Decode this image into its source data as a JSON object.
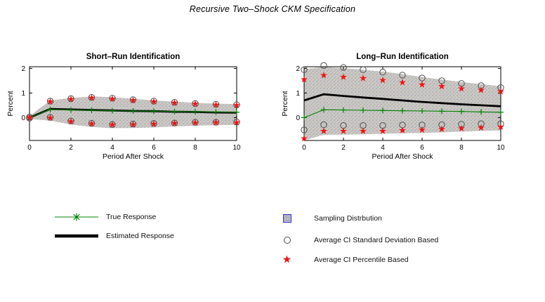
{
  "figure_title": "Recursive Two–Shock CKM Specification",
  "chart_data": [
    {
      "type": "line",
      "title": "Short–Run Identification",
      "xlabel": "Period After Shock",
      "ylabel": "Percent",
      "x": [
        0,
        1,
        2,
        3,
        4,
        5,
        6,
        7,
        8,
        9,
        10
      ],
      "xlim": [
        0,
        10
      ],
      "ylim": [
        -0.93,
        2.07
      ],
      "xticks": [
        0,
        2,
        4,
        6,
        8,
        10
      ],
      "yticks": [
        0,
        1,
        2
      ],
      "grid": false,
      "series": {
        "true_response": [
          0.0,
          0.33,
          0.31,
          0.3,
          0.28,
          0.27,
          0.26,
          0.25,
          0.24,
          0.23,
          0.22
        ],
        "estimated_response": [
          0.0,
          0.35,
          0.33,
          0.31,
          0.29,
          0.27,
          0.26,
          0.24,
          0.23,
          0.21,
          0.2
        ],
        "ci_sd_upper": [
          0.02,
          0.67,
          0.77,
          0.82,
          0.79,
          0.73,
          0.67,
          0.62,
          0.57,
          0.54,
          0.52
        ],
        "ci_sd_lower": [
          -0.02,
          0.01,
          -0.14,
          -0.23,
          -0.28,
          -0.26,
          -0.24,
          -0.22,
          -0.19,
          -0.19,
          -0.18
        ],
        "ci_pct_upper": [
          0.0,
          0.65,
          0.75,
          0.8,
          0.76,
          0.7,
          0.65,
          0.6,
          0.56,
          0.52,
          0.5
        ],
        "ci_pct_lower": [
          0.0,
          -0.01,
          -0.16,
          -0.25,
          -0.29,
          -0.28,
          -0.26,
          -0.23,
          -0.21,
          -0.2,
          -0.2
        ],
        "band_upper": [
          0.06,
          0.7,
          0.8,
          0.86,
          0.83,
          0.77,
          0.7,
          0.65,
          0.6,
          0.57,
          0.55
        ],
        "band_lower": [
          -0.06,
          -0.12,
          -0.28,
          -0.38,
          -0.43,
          -0.42,
          -0.4,
          -0.36,
          -0.33,
          -0.31,
          -0.3
        ]
      }
    },
    {
      "type": "line",
      "title": "Long–Run Identification",
      "xlabel": "Period After Shock",
      "ylabel": "Percent",
      "x": [
        0,
        1,
        2,
        3,
        4,
        5,
        6,
        7,
        8,
        9,
        10
      ],
      "xlim": [
        0,
        10
      ],
      "ylim": [
        -0.93,
        2.07
      ],
      "xticks": [
        0,
        2,
        4,
        6,
        8,
        10
      ],
      "yticks": [
        0,
        1,
        2
      ],
      "grid": false,
      "series": {
        "true_response": [
          0.0,
          0.32,
          0.31,
          0.3,
          0.29,
          0.28,
          0.27,
          0.26,
          0.25,
          0.23,
          0.22
        ],
        "estimated_response": [
          0.7,
          0.95,
          0.88,
          0.82,
          0.76,
          0.7,
          0.64,
          0.59,
          0.54,
          0.5,
          0.46
        ],
        "ci_sd_upper": [
          1.95,
          2.12,
          2.04,
          1.95,
          1.85,
          1.73,
          1.61,
          1.5,
          1.39,
          1.3,
          1.22
        ],
        "ci_sd_lower": [
          -0.5,
          -0.29,
          -0.32,
          -0.32,
          -0.32,
          -0.3,
          -0.3,
          -0.29,
          -0.27,
          -0.25,
          -0.25
        ],
        "ci_pct_upper": [
          1.55,
          1.72,
          1.65,
          1.6,
          1.52,
          1.43,
          1.34,
          1.27,
          1.18,
          1.12,
          1.06
        ],
        "ci_pct_lower": [
          -0.85,
          -0.55,
          -0.55,
          -0.55,
          -0.55,
          -0.52,
          -0.5,
          -0.47,
          -0.44,
          -0.41,
          -0.38
        ],
        "band_upper": [
          1.97,
          2.06,
          2.01,
          1.95,
          1.87,
          1.77,
          1.65,
          1.55,
          1.45,
          1.36,
          1.28
        ],
        "band_lower": [
          -0.92,
          -0.7,
          -0.69,
          -0.68,
          -0.66,
          -0.64,
          -0.62,
          -0.6,
          -0.57,
          -0.54,
          -0.52
        ]
      }
    }
  ],
  "legend_left": {
    "items": [
      {
        "label": "True Response",
        "marker": "asterisk-line"
      },
      {
        "label": "Estimated Response",
        "marker": "thick-line"
      }
    ]
  },
  "legend_right": {
    "items": [
      {
        "label": "Sampling Distrbution",
        "marker": "shaded-square"
      },
      {
        "label": "Average CI Standard Deviation Based",
        "marker": "open-circle"
      },
      {
        "label": "Average CI Percentile Based",
        "marker": "red-star"
      }
    ]
  },
  "colors": {
    "true_response": "#008000",
    "estimated_response": "#000000",
    "ci_sd_marker": "#4d4d4d",
    "ci_pct_marker": "#f01414",
    "band_fill": "#cbc9c1",
    "band_speckle_blue": "#9191c8",
    "band_speckle_gray": "#a9a8a0",
    "axis": "#000000",
    "legend_square_border": "#2b2bd8"
  }
}
